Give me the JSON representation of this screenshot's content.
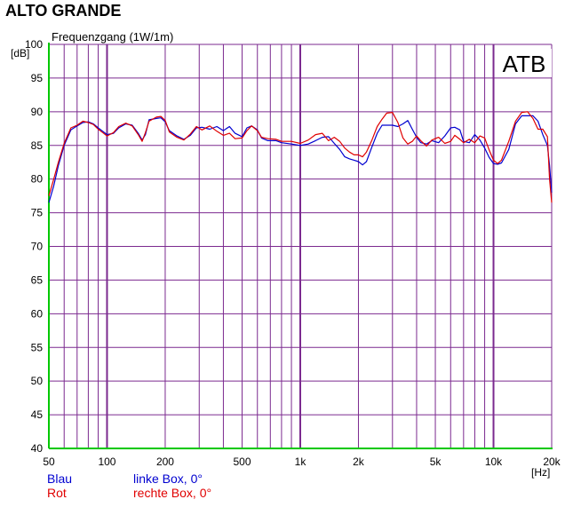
{
  "page_title": "ALTO GRANDE",
  "chart_data": {
    "type": "line",
    "title": "Frequenzgang (1W/1m)",
    "watermark": "ATB",
    "ylabel_unit": "[dB]",
    "xlabel_unit": "[Hz]",
    "x_scale": "log",
    "xlim": [
      50,
      20000
    ],
    "ylim": [
      40,
      100
    ],
    "x_major_ticks": [
      50,
      100,
      200,
      500,
      1000,
      2000,
      5000,
      10000,
      20000
    ],
    "x_tick_labels": [
      "50",
      "100",
      "200",
      "500",
      "1k",
      "2k",
      "5k",
      "10k",
      "20k"
    ],
    "y_ticks": [
      40,
      45,
      50,
      55,
      60,
      65,
      70,
      75,
      80,
      85,
      90,
      95,
      100
    ],
    "y_tick_labels": [
      "40",
      "45",
      "50",
      "55",
      "60",
      "65",
      "70",
      "75",
      "80",
      "85",
      "90",
      "95",
      "100"
    ],
    "grid": true,
    "colors": {
      "grid": "#7b2a8f",
      "axis": "#00c800",
      "blue": "#0000d0",
      "red": "#e00000"
    },
    "legend": [
      {
        "color_name": "Blau",
        "label": "linke Box, 0°",
        "color": "#0000d0"
      },
      {
        "color_name": "Rot",
        "label": "rechte Box, 0°",
        "color": "#e00000"
      }
    ],
    "series": [
      {
        "name": "linke Box, 0°",
        "color": "#0000d0",
        "points": [
          [
            50,
            76.5
          ],
          [
            53,
            79
          ],
          [
            56,
            82
          ],
          [
            60,
            85
          ],
          [
            65,
            87.3
          ],
          [
            70,
            87.9
          ],
          [
            75,
            88.4
          ],
          [
            80,
            88.5
          ],
          [
            85,
            88.2
          ],
          [
            90,
            87.6
          ],
          [
            95,
            87.1
          ],
          [
            100,
            86.6
          ],
          [
            108,
            86.8
          ],
          [
            115,
            87.6
          ],
          [
            125,
            88.2
          ],
          [
            135,
            88
          ],
          [
            145,
            86.8
          ],
          [
            152,
            85.8
          ],
          [
            158,
            86.6
          ],
          [
            165,
            88.8
          ],
          [
            180,
            89
          ],
          [
            190,
            89.1
          ],
          [
            200,
            88.5
          ],
          [
            210,
            87.2
          ],
          [
            230,
            86.4
          ],
          [
            250,
            85.9
          ],
          [
            270,
            86.5
          ],
          [
            290,
            87.6
          ],
          [
            310,
            87.7
          ],
          [
            340,
            87.4
          ],
          [
            370,
            87.8
          ],
          [
            400,
            87.2
          ],
          [
            430,
            87.8
          ],
          [
            460,
            86.8
          ],
          [
            500,
            86.3
          ],
          [
            530,
            87.6
          ],
          [
            560,
            87.9
          ],
          [
            600,
            87.3
          ],
          [
            630,
            86.1
          ],
          [
            680,
            85.7
          ],
          [
            750,
            85.7
          ],
          [
            800,
            85.4
          ],
          [
            900,
            85.2
          ],
          [
            1000,
            85
          ],
          [
            1100,
            85.2
          ],
          [
            1200,
            85.7
          ],
          [
            1300,
            86.2
          ],
          [
            1400,
            86.3
          ],
          [
            1500,
            85.3
          ],
          [
            1600,
            84.4
          ],
          [
            1700,
            83.3
          ],
          [
            1800,
            83
          ],
          [
            1900,
            82.8
          ],
          [
            2000,
            82.6
          ],
          [
            2100,
            82.1
          ],
          [
            2200,
            82.6
          ],
          [
            2350,
            84.8
          ],
          [
            2500,
            86.8
          ],
          [
            2650,
            88
          ],
          [
            2800,
            88
          ],
          [
            3000,
            88
          ],
          [
            3200,
            87.8
          ],
          [
            3400,
            88.2
          ],
          [
            3600,
            88.7
          ],
          [
            3800,
            87.4
          ],
          [
            4000,
            86.2
          ],
          [
            4200,
            85.4
          ],
          [
            4500,
            85.2
          ],
          [
            4800,
            85.7
          ],
          [
            5200,
            85.4
          ],
          [
            5600,
            86.4
          ],
          [
            6000,
            87.6
          ],
          [
            6300,
            87.7
          ],
          [
            6700,
            87.3
          ],
          [
            7000,
            85.6
          ],
          [
            7500,
            85.4
          ],
          [
            8000,
            86.6
          ],
          [
            8500,
            85.8
          ],
          [
            9000,
            84.6
          ],
          [
            9500,
            83.2
          ],
          [
            10000,
            82.3
          ],
          [
            10500,
            82.2
          ],
          [
            11000,
            82.4
          ],
          [
            12000,
            84.4
          ],
          [
            13000,
            88.2
          ],
          [
            14000,
            89.4
          ],
          [
            15000,
            89.4
          ],
          [
            16000,
            89.4
          ],
          [
            17000,
            88.6
          ],
          [
            18000,
            86.6
          ],
          [
            19000,
            85
          ],
          [
            19500,
            82
          ],
          [
            20000,
            78
          ]
        ]
      },
      {
        "name": "rechte Box, 0°",
        "color": "#e00000",
        "points": [
          [
            50,
            77.5
          ],
          [
            53,
            80
          ],
          [
            56,
            82.5
          ],
          [
            60,
            85.3
          ],
          [
            65,
            87.6
          ],
          [
            70,
            88
          ],
          [
            75,
            88.6
          ],
          [
            80,
            88.4
          ],
          [
            85,
            88.1
          ],
          [
            90,
            87.4
          ],
          [
            95,
            86.9
          ],
          [
            100,
            86.4
          ],
          [
            108,
            86.9
          ],
          [
            115,
            87.8
          ],
          [
            125,
            88.3
          ],
          [
            135,
            87.9
          ],
          [
            145,
            86.6
          ],
          [
            152,
            85.6
          ],
          [
            158,
            86.9
          ],
          [
            165,
            88.6
          ],
          [
            180,
            89.2
          ],
          [
            190,
            89.3
          ],
          [
            200,
            88.7
          ],
          [
            210,
            87
          ],
          [
            230,
            86.2
          ],
          [
            250,
            85.8
          ],
          [
            270,
            86.7
          ],
          [
            290,
            87.8
          ],
          [
            310,
            87.3
          ],
          [
            340,
            87.9
          ],
          [
            370,
            87.1
          ],
          [
            400,
            86.5
          ],
          [
            430,
            86.8
          ],
          [
            460,
            86
          ],
          [
            500,
            86.1
          ],
          [
            530,
            87.2
          ],
          [
            560,
            87.9
          ],
          [
            600,
            87.2
          ],
          [
            630,
            86.2
          ],
          [
            680,
            86
          ],
          [
            750,
            85.9
          ],
          [
            800,
            85.6
          ],
          [
            900,
            85.6
          ],
          [
            1000,
            85.3
          ],
          [
            1100,
            85.8
          ],
          [
            1200,
            86.6
          ],
          [
            1300,
            86.8
          ],
          [
            1400,
            85.7
          ],
          [
            1500,
            86.2
          ],
          [
            1600,
            85.6
          ],
          [
            1700,
            84.6
          ],
          [
            1800,
            84
          ],
          [
            1900,
            83.6
          ],
          [
            2000,
            83.6
          ],
          [
            2100,
            83.3
          ],
          [
            2200,
            84
          ],
          [
            2350,
            85.8
          ],
          [
            2500,
            87.8
          ],
          [
            2650,
            88.9
          ],
          [
            2800,
            89.8
          ],
          [
            3000,
            89.9
          ],
          [
            3200,
            88.4
          ],
          [
            3400,
            86.1
          ],
          [
            3600,
            85.2
          ],
          [
            3800,
            85.6
          ],
          [
            4000,
            86.4
          ],
          [
            4200,
            85.7
          ],
          [
            4500,
            84.9
          ],
          [
            4800,
            85.8
          ],
          [
            5200,
            86.2
          ],
          [
            5600,
            85.3
          ],
          [
            6000,
            85.6
          ],
          [
            6300,
            86.5
          ],
          [
            6700,
            85.9
          ],
          [
            7000,
            85.4
          ],
          [
            7500,
            85.9
          ],
          [
            8000,
            85.4
          ],
          [
            8500,
            86.4
          ],
          [
            9000,
            86.1
          ],
          [
            9500,
            84.3
          ],
          [
            10000,
            82.8
          ],
          [
            10500,
            82.3
          ],
          [
            11000,
            82.8
          ],
          [
            12000,
            85.6
          ],
          [
            13000,
            88.6
          ],
          [
            14000,
            89.9
          ],
          [
            15000,
            90
          ],
          [
            16000,
            89
          ],
          [
            17000,
            87.4
          ],
          [
            18000,
            87.4
          ],
          [
            19000,
            86.3
          ],
          [
            19500,
            80
          ],
          [
            20000,
            76.5
          ]
        ]
      }
    ]
  }
}
